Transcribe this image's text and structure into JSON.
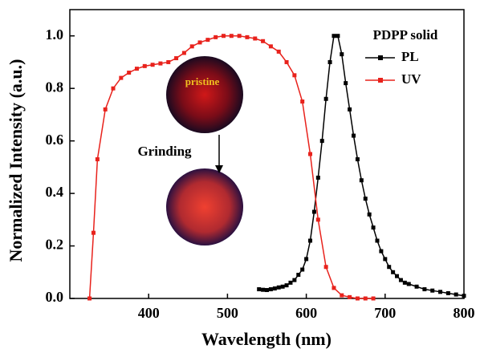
{
  "chart_data": {
    "type": "line",
    "xlabel": "Wavelength (nm)",
    "ylabel": "Normalized Intensity (a.u.)",
    "xlim": [
      300,
      800
    ],
    "xticks": [
      400,
      500,
      600,
      700,
      800
    ],
    "ylim": [
      0,
      1.1
    ],
    "yticks": [
      {
        "value": 0,
        "label": "0.0"
      },
      0.2,
      0.4,
      0.6,
      0.8,
      {
        "value": 1,
        "label": "1.0"
      }
    ],
    "legend_title": "PDPP solid",
    "legend_position": "upper right",
    "annotations": [
      "pristine",
      "Grinding"
    ],
    "series": [
      {
        "name": "PL",
        "color": "#000000",
        "x": [
          540,
          545,
          550,
          555,
          560,
          565,
          570,
          575,
          580,
          585,
          590,
          595,
          600,
          605,
          610,
          615,
          620,
          625,
          630,
          635,
          640,
          645,
          650,
          655,
          660,
          665,
          670,
          675,
          680,
          685,
          690,
          695,
          700,
          705,
          710,
          715,
          720,
          725,
          730,
          740,
          750,
          760,
          770,
          780,
          790,
          800
        ],
        "values": [
          0.035,
          0.033,
          0.032,
          0.035,
          0.038,
          0.042,
          0.045,
          0.05,
          0.06,
          0.07,
          0.09,
          0.11,
          0.15,
          0.22,
          0.33,
          0.46,
          0.6,
          0.76,
          0.9,
          1.0,
          1.0,
          0.93,
          0.82,
          0.72,
          0.62,
          0.53,
          0.45,
          0.38,
          0.32,
          0.27,
          0.22,
          0.18,
          0.15,
          0.12,
          0.1,
          0.085,
          0.07,
          0.06,
          0.055,
          0.045,
          0.035,
          0.03,
          0.025,
          0.02,
          0.015,
          0.01
        ]
      },
      {
        "name": "UV",
        "color": "#e8221c",
        "x": [
          325,
          330,
          335,
          345,
          355,
          365,
          375,
          385,
          395,
          405,
          415,
          425,
          435,
          445,
          455,
          465,
          475,
          485,
          495,
          505,
          515,
          525,
          535,
          545,
          555,
          565,
          575,
          585,
          595,
          605,
          615,
          625,
          635,
          645,
          655,
          665,
          675,
          685
        ],
        "values": [
          0,
          0.25,
          0.53,
          0.72,
          0.8,
          0.84,
          0.86,
          0.875,
          0.885,
          0.89,
          0.895,
          0.9,
          0.915,
          0.935,
          0.96,
          0.975,
          0.985,
          0.995,
          1.0,
          1.0,
          1.0,
          0.995,
          0.99,
          0.98,
          0.96,
          0.94,
          0.9,
          0.85,
          0.75,
          0.55,
          0.3,
          0.12,
          0.04,
          0.012,
          0.005,
          0,
          0,
          0
        ]
      }
    ]
  }
}
